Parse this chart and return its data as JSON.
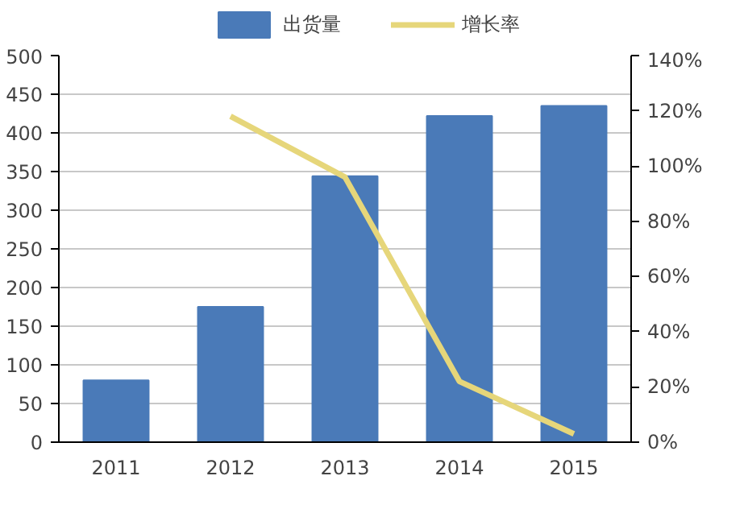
{
  "chart_data": {
    "type": "bar",
    "categories": [
      "2011",
      "2012",
      "2013",
      "2014",
      "2015"
    ],
    "series": [
      {
        "name": "出货量",
        "color": "#4a7ab8",
        "values": [
          80,
          175,
          344,
          422,
          435
        ]
      },
      {
        "name": "增长率",
        "type": "line",
        "axis": "y2",
        "color": "#e6d67a",
        "values": [
          null,
          118,
          96,
          22,
          3
        ]
      }
    ],
    "ylim": [
      0,
      500
    ],
    "yticks": [
      0,
      50,
      100,
      150,
      200,
      250,
      300,
      350,
      400,
      450,
      500
    ],
    "y2lim": [
      0,
      140
    ],
    "y2ticks": [
      {
        "value": 0,
        "label": "0%"
      },
      {
        "value": 20,
        "label": "20%"
      },
      {
        "value": 40,
        "label": "40%"
      },
      {
        "value": 60,
        "label": "60%"
      },
      {
        "value": 80,
        "label": "80%"
      },
      {
        "value": 100,
        "label": "100%"
      },
      {
        "value": 120,
        "label": "120%"
      },
      {
        "value": 140,
        "label": "140%"
      }
    ],
    "grid": "y",
    "legend": "top"
  }
}
